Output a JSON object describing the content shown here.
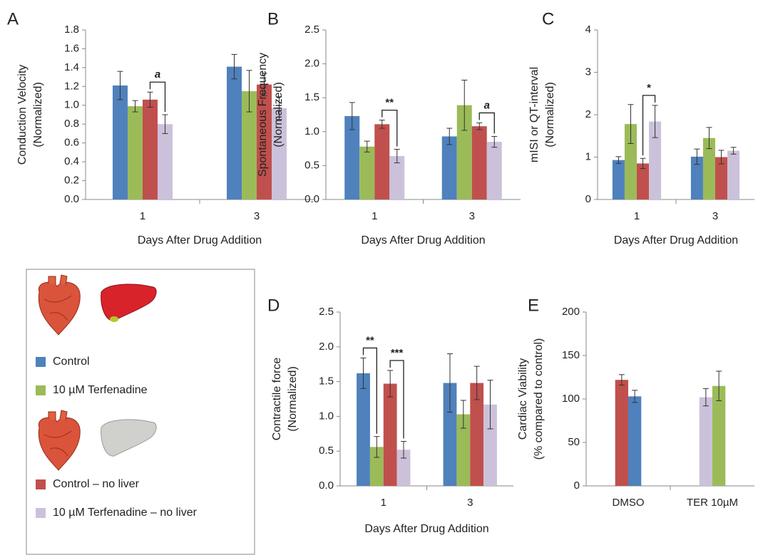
{
  "chart_data": [
    {
      "type": "bar",
      "label": "A",
      "ylabel": [
        "Conduction Velocity",
        "(Normalized)"
      ],
      "xlabel": "Days After Drug Addition",
      "categories": [
        "1",
        "3"
      ],
      "series": [
        {
          "name": "Control",
          "color": "#4f81bd",
          "values": [
            1.21,
            1.41
          ],
          "errors": [
            0.15,
            0.13
          ]
        },
        {
          "name": "10 µM Terfenadine",
          "color": "#9bbb59",
          "values": [
            0.99,
            1.15
          ],
          "errors": [
            0.06,
            0.22
          ]
        },
        {
          "name": "Control – no liver",
          "color": "#c0504d",
          "values": [
            1.06,
            1.22
          ],
          "errors": [
            0.08,
            0.12
          ]
        },
        {
          "name": "10 µM Terfenadine – no liver",
          "color": "#ccc1da",
          "values": [
            0.8,
            0.97
          ],
          "errors": [
            0.1,
            0.12
          ]
        }
      ],
      "ylim": [
        0,
        1.8
      ],
      "yticks": [
        {
          "value": 0,
          "label": "0.0"
        },
        0.2,
        0.4,
        0.6,
        0.8,
        {
          "value": 1,
          "label": "1.0"
        },
        1.2,
        1.4,
        1.6,
        1.8
      ],
      "annotations": [
        {
          "text": "a",
          "category": 0,
          "series": [
            2,
            3
          ]
        }
      ]
    },
    {
      "type": "bar",
      "label": "B",
      "ylabel": [
        "Spontaneous Frequency",
        "(Normalized)"
      ],
      "xlabel": "Days After Drug Addition",
      "categories": [
        "1",
        "3"
      ],
      "series": [
        {
          "color": "#4f81bd",
          "values": [
            1.23,
            0.93
          ],
          "errors": [
            0.2,
            0.12
          ]
        },
        {
          "color": "#9bbb59",
          "values": [
            0.78,
            1.39
          ],
          "errors": [
            0.08,
            0.37
          ]
        },
        {
          "color": "#c0504d",
          "values": [
            1.11,
            1.08
          ],
          "errors": [
            0.06,
            0.05
          ]
        },
        {
          "color": "#ccc1da",
          "values": [
            0.64,
            0.85
          ],
          "errors": [
            0.1,
            0.08
          ]
        }
      ],
      "ylim": [
        0,
        2.5
      ],
      "yticks": [
        {
          "value": 0,
          "label": "0.0"
        },
        0.5,
        {
          "value": 1,
          "label": "1.0"
        },
        1.5,
        {
          "value": 2,
          "label": "2.0"
        },
        2.5
      ],
      "annotations": [
        {
          "text": "**",
          "category": 0,
          "series": [
            2,
            3
          ]
        },
        {
          "text": "a",
          "category": 1,
          "series": [
            2,
            3
          ]
        }
      ]
    },
    {
      "type": "bar",
      "label": "C",
      "ylabel": [
        "mISI  or QT-interval",
        "(Normalized)"
      ],
      "xlabel": "Days After Drug Addition",
      "categories": [
        "1",
        "3"
      ],
      "series": [
        {
          "color": "#4f81bd",
          "values": [
            0.93,
            1.01
          ],
          "errors": [
            0.08,
            0.18
          ]
        },
        {
          "color": "#9bbb59",
          "values": [
            1.78,
            1.45
          ],
          "errors": [
            0.46,
            0.25
          ]
        },
        {
          "color": "#c0504d",
          "values": [
            0.85,
            1.0
          ],
          "errors": [
            0.12,
            0.16
          ]
        },
        {
          "color": "#ccc1da",
          "values": [
            1.84,
            1.15
          ],
          "errors": [
            0.38,
            0.08
          ]
        }
      ],
      "ylim": [
        0,
        4
      ],
      "yticks": [
        0,
        1,
        2,
        3,
        4
      ],
      "annotations": [
        {
          "text": "*",
          "category": 0,
          "series": [
            2,
            3
          ]
        }
      ]
    },
    {
      "type": "bar",
      "label": "D",
      "ylabel": [
        "Contractile force",
        "(Normalized)"
      ],
      "xlabel": "Days After Drug Addition",
      "categories": [
        "1",
        "3"
      ],
      "series": [
        {
          "color": "#4f81bd",
          "values": [
            1.62,
            1.48
          ],
          "errors": [
            0.22,
            0.42
          ]
        },
        {
          "color": "#9bbb59",
          "values": [
            0.56,
            1.03
          ],
          "errors": [
            0.15,
            0.2
          ]
        },
        {
          "color": "#c0504d",
          "values": [
            1.47,
            1.48
          ],
          "errors": [
            0.19,
            0.24
          ]
        },
        {
          "color": "#ccc1da",
          "values": [
            0.52,
            1.17
          ],
          "errors": [
            0.12,
            0.35
          ]
        }
      ],
      "ylim": [
        0,
        2.5
      ],
      "yticks": [
        {
          "value": 0,
          "label": "0.0"
        },
        0.5,
        {
          "value": 1,
          "label": "1.0"
        },
        1.5,
        {
          "value": 2,
          "label": "2.0"
        },
        2.5
      ],
      "annotations": [
        {
          "text": "**",
          "category": 0,
          "series": [
            0,
            1
          ]
        },
        {
          "text": "***",
          "category": 0,
          "series": [
            2,
            3
          ]
        }
      ]
    },
    {
      "type": "bar",
      "label": "E",
      "ylabel": [
        "Cardiac Viability",
        "(% compared to control)"
      ],
      "categories": [
        "DMSO",
        "TER 10µM"
      ],
      "series": [
        {
          "color": "#c0504d",
          "values": [
            122,
            null
          ],
          "errors": [
            6,
            null
          ]
        },
        {
          "color": "#4f81bd",
          "values": [
            103,
            null
          ],
          "errors": [
            7,
            null
          ]
        },
        {
          "color": "#ccc1da",
          "values": [
            null,
            102
          ],
          "errors": [
            null,
            10
          ]
        },
        {
          "color": "#9bbb59",
          "values": [
            null,
            115
          ],
          "errors": [
            null,
            17
          ]
        }
      ],
      "ylim": [
        0,
        200
      ],
      "yticks": [
        0,
        50,
        100,
        150,
        200
      ],
      "annotations": []
    }
  ]
}
